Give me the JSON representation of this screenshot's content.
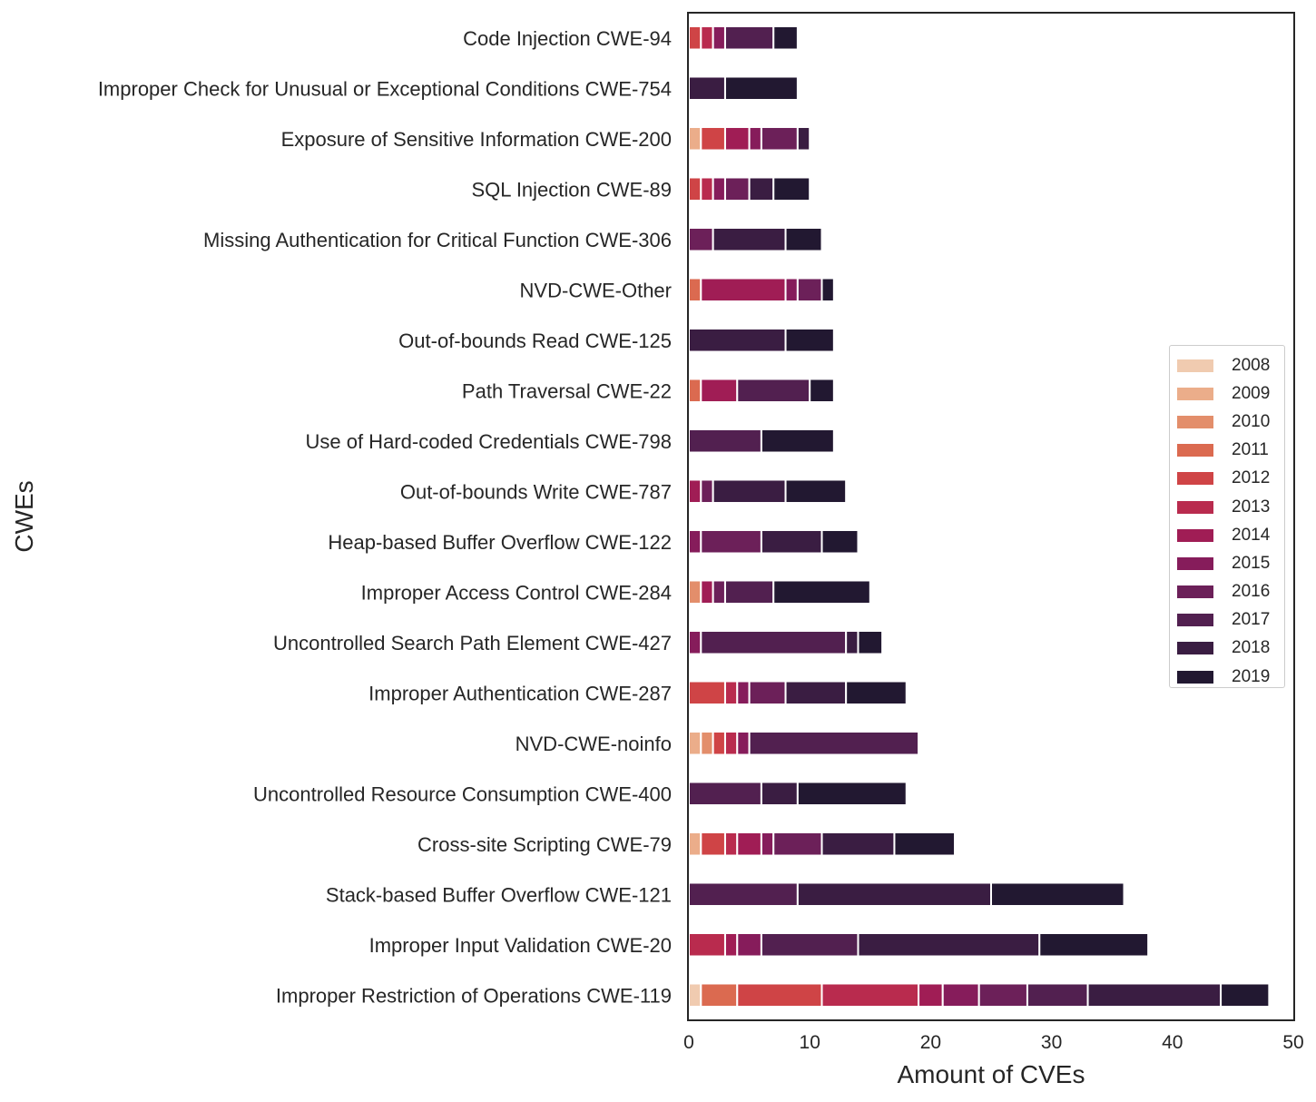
{
  "chart_data": {
    "type": "bar",
    "orientation": "horizontal",
    "stacked": true,
    "xlabel": "Amount of CVEs",
    "ylabel": "CWEs",
    "xlim": [
      0,
      50
    ],
    "xticks": [
      0,
      10,
      20,
      30,
      40,
      50
    ],
    "grid": false,
    "legend_position": "right",
    "categories": [
      "Code Injection CWE-94",
      "Improper Check for Unusual or Exceptional Conditions CWE-754",
      "Exposure of Sensitive Information CWE-200",
      "SQL Injection CWE-89",
      "Missing Authentication for Critical Function CWE-306",
      "NVD-CWE-Other",
      "Out-of-bounds Read CWE-125",
      "Path Traversal CWE-22",
      "Use of Hard-coded Credentials CWE-798",
      "Out-of-bounds Write CWE-787",
      "Heap-based Buffer Overflow CWE-122",
      "Improper Access Control CWE-284",
      "Uncontrolled Search Path Element CWE-427",
      "Improper Authentication CWE-287",
      "NVD-CWE-noinfo",
      "Uncontrolled Resource Consumption CWE-400",
      "Cross-site Scripting CWE-79",
      "Stack-based Buffer Overflow CWE-121",
      "Improper Input Validation CWE-20",
      "Improper Restriction of Operations CWE-119"
    ],
    "series": [
      {
        "name": "2008",
        "color": "#f0cbb0",
        "values": [
          0,
          0,
          0,
          0,
          0,
          0,
          0,
          0,
          0,
          0,
          0,
          0,
          0,
          0,
          0,
          0,
          0,
          0,
          0,
          1
        ]
      },
      {
        "name": "2009",
        "color": "#ebad8a",
        "values": [
          0,
          0,
          1,
          0,
          0,
          0,
          0,
          0,
          0,
          0,
          0,
          0,
          0,
          0,
          1,
          0,
          1,
          0,
          0,
          0
        ]
      },
      {
        "name": "2010",
        "color": "#e38e6b",
        "values": [
          0,
          0,
          0,
          0,
          0,
          0,
          0,
          0,
          0,
          0,
          0,
          1,
          0,
          0,
          1,
          0,
          0,
          0,
          0,
          0
        ]
      },
      {
        "name": "2011",
        "color": "#db6a50",
        "values": [
          0,
          0,
          0,
          0,
          0,
          1,
          0,
          1,
          0,
          0,
          0,
          0,
          0,
          0,
          0,
          0,
          0,
          0,
          0,
          3
        ]
      },
      {
        "name": "2012",
        "color": "#cf4446",
        "values": [
          1,
          0,
          2,
          1,
          0,
          0,
          0,
          0,
          0,
          0,
          0,
          0,
          0,
          3,
          1,
          0,
          2,
          0,
          0,
          7
        ]
      },
      {
        "name": "2013",
        "color": "#b92b4e",
        "values": [
          1,
          0,
          0,
          1,
          0,
          0,
          0,
          0,
          0,
          0,
          0,
          0,
          0,
          1,
          1,
          0,
          1,
          0,
          3,
          8
        ]
      },
      {
        "name": "2014",
        "color": "#a01d55",
        "values": [
          0,
          0,
          2,
          0,
          0,
          7,
          0,
          3,
          0,
          1,
          0,
          1,
          0,
          0,
          0,
          0,
          2,
          0,
          1,
          2
        ]
      },
      {
        "name": "2015",
        "color": "#861c5b",
        "values": [
          1,
          0,
          1,
          1,
          0,
          1,
          0,
          0,
          0,
          0,
          1,
          0,
          1,
          1,
          1,
          0,
          1,
          0,
          2,
          3
        ]
      },
      {
        "name": "2016",
        "color": "#6c2059",
        "values": [
          0,
          0,
          3,
          2,
          2,
          2,
          0,
          0,
          0,
          1,
          5,
          1,
          0,
          3,
          0,
          0,
          4,
          0,
          0,
          4
        ]
      },
      {
        "name": "2017",
        "color": "#522050",
        "values": [
          4,
          0,
          0,
          0,
          0,
          0,
          0,
          6,
          6,
          0,
          0,
          4,
          12,
          0,
          14,
          6,
          0,
          9,
          8,
          5
        ]
      },
      {
        "name": "2018",
        "color": "#3a1d42",
        "values": [
          0,
          3,
          1,
          2,
          6,
          0,
          8,
          0,
          0,
          6,
          5,
          0,
          1,
          5,
          0,
          3,
          6,
          16,
          15,
          11
        ]
      },
      {
        "name": "2019",
        "color": "#221831",
        "values": [
          2,
          6,
          0,
          3,
          3,
          1,
          4,
          2,
          6,
          5,
          3,
          8,
          2,
          5,
          0,
          9,
          5,
          11,
          9,
          4
        ]
      }
    ]
  }
}
